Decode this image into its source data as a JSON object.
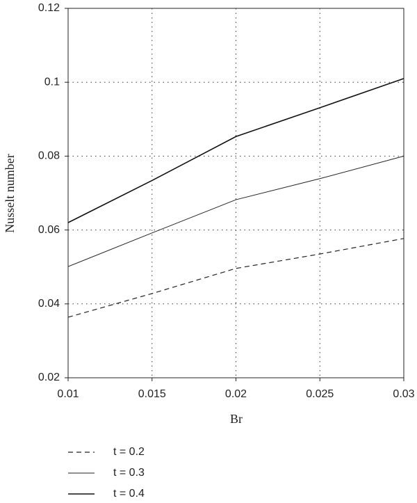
{
  "chart_data": {
    "type": "line",
    "x_label": "Br",
    "y_label": "Nusselt number",
    "x": [
      0.01,
      0.015,
      0.02,
      0.025,
      0.03
    ],
    "series": [
      {
        "name": "t = 0.2",
        "color": "#222222",
        "dash": true,
        "values": [
          0.0364,
          0.0428,
          0.0496,
          0.0535,
          0.0577
        ]
      },
      {
        "name": "t = 0.3",
        "color": "#222222",
        "width": 1,
        "values": [
          0.0501,
          0.0592,
          0.0682,
          0.0739,
          0.08
        ]
      },
      {
        "name": "t = 0.4",
        "color": "#111111",
        "width": 1.6,
        "values": [
          0.062,
          0.0734,
          0.0853,
          0.0931,
          0.101
        ]
      }
    ],
    "xlim": [
      0.01,
      0.03
    ],
    "xticks": [
      0.01,
      0.015,
      0.02,
      0.025,
      0.03
    ],
    "ylim": [
      0.02,
      0.12
    ],
    "yticks": [
      0.02,
      0.04,
      0.06,
      0.08,
      0.1,
      0.12
    ],
    "grid": true
  }
}
